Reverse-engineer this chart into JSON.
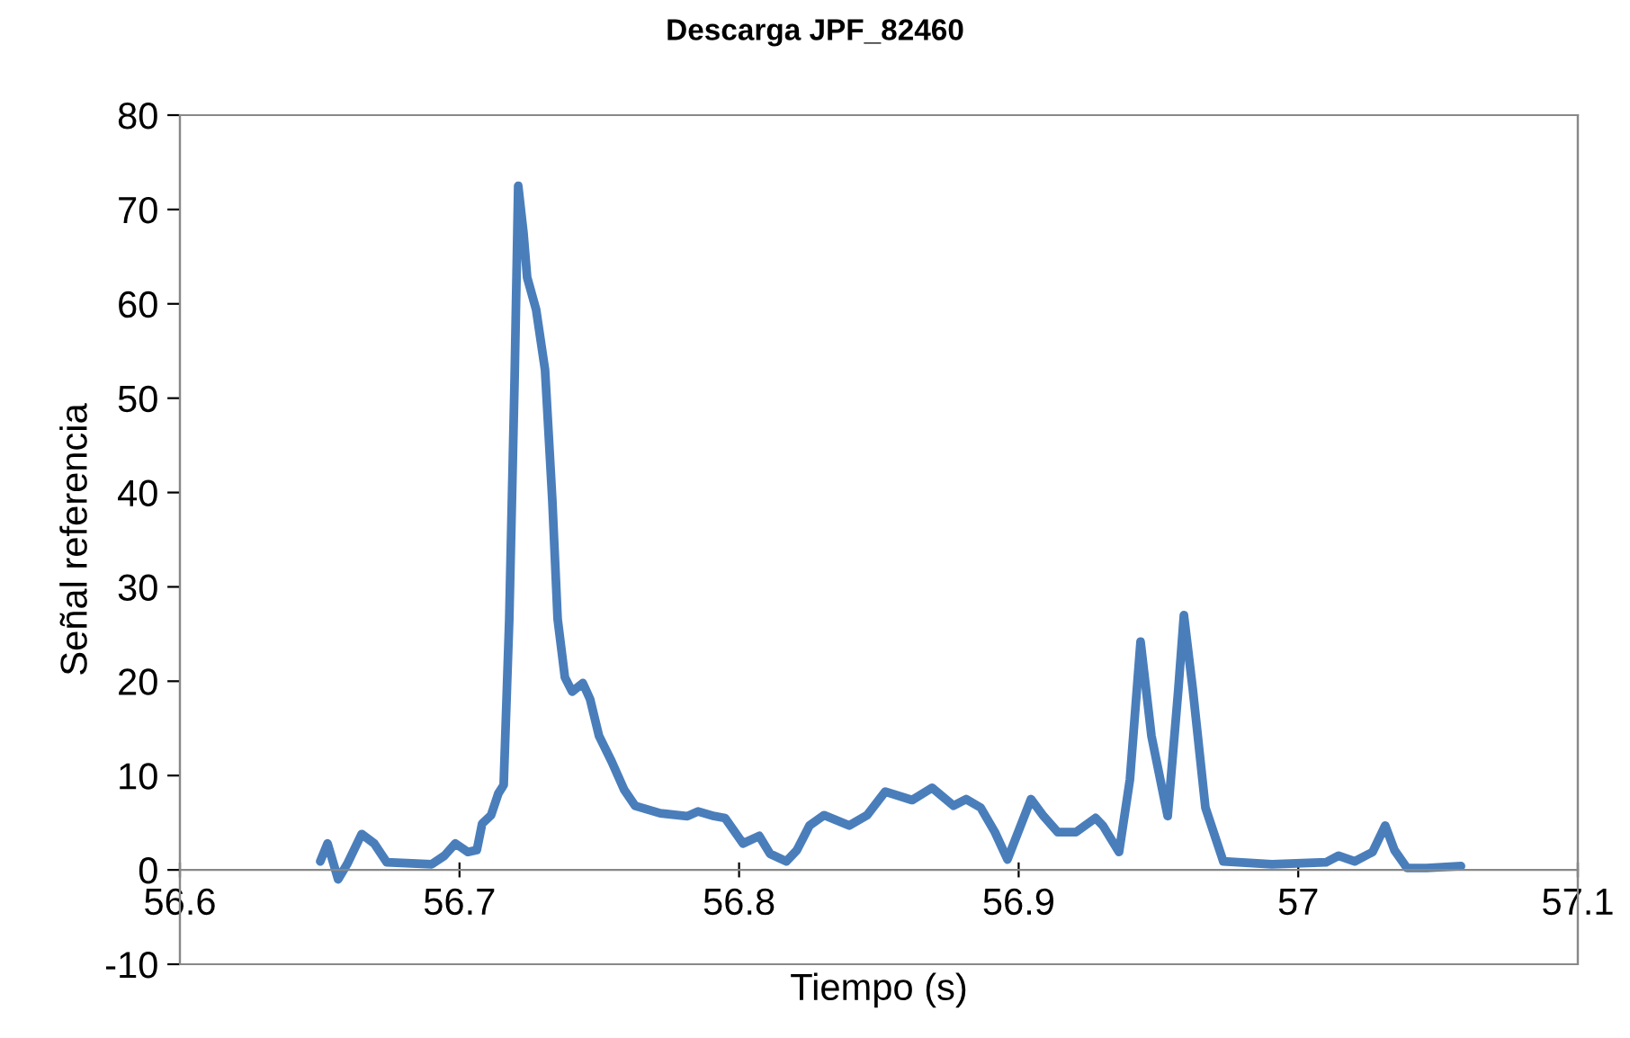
{
  "chart_data": {
    "type": "line",
    "title": "Descarga JPF_82460",
    "xlabel": "Tiempo (s)",
    "ylabel": "Señal referencia",
    "xlim": [
      56.6,
      57.1
    ],
    "xticks": [
      56.6,
      56.7,
      56.8,
      56.9,
      57,
      57.1
    ],
    "ylim": [
      -10,
      80
    ],
    "yticks": [
      -10,
      0,
      10,
      20,
      30,
      40,
      50,
      60,
      70,
      80
    ],
    "grid": false,
    "legend": false,
    "marker": "none",
    "line_style": "solid",
    "series": [
      {
        "color": "#4a7ebb",
        "x": [
          56.6502,
          56.6528,
          56.6566,
          56.6598,
          56.665,
          56.6695,
          56.674,
          56.6901,
          56.6946,
          56.6985,
          56.703,
          56.7062,
          56.7081,
          56.7113,
          56.7139,
          56.7158,
          56.7178,
          56.7197,
          56.721,
          56.7229,
          56.7242,
          56.7274,
          56.7306,
          56.7332,
          56.7351,
          56.7377,
          56.7403,
          56.7441,
          56.7467,
          56.7499,
          56.7544,
          56.7589,
          56.7628,
          56.7718,
          56.7815,
          56.7853,
          56.7911,
          56.795,
          56.8014,
          56.8072,
          56.8111,
          56.8169,
          56.8207,
          56.8252,
          56.8304,
          56.8394,
          56.8458,
          56.8523,
          56.8619,
          56.869,
          56.8767,
          56.8812,
          56.8864,
          56.8915,
          56.896,
          56.9044,
          56.9089,
          56.914,
          56.9205,
          56.9275,
          56.9301,
          56.9359,
          56.9398,
          56.9436,
          56.9475,
          56.9533,
          56.9571,
          56.9591,
          56.9623,
          56.9668,
          56.9732,
          56.9906,
          57.0099,
          57.0144,
          57.0202,
          57.0266,
          57.0311,
          57.0344,
          57.0389,
          57.0459,
          57.0582
        ],
        "values": [
          0.9,
          2.8,
          -1.0,
          0.6,
          3.8,
          2.8,
          0.8,
          0.6,
          1.5,
          2.8,
          1.9,
          2.1,
          4.9,
          5.8,
          8.1,
          9.0,
          26.6,
          51.9,
          72.5,
          67.5,
          62.8,
          59.4,
          53.0,
          39.2,
          26.6,
          20.4,
          18.9,
          19.8,
          18.1,
          14.2,
          11.5,
          8.5,
          6.8,
          6.0,
          5.7,
          6.2,
          5.7,
          5.5,
          2.8,
          3.6,
          1.7,
          0.9,
          2.1,
          4.7,
          5.8,
          4.7,
          5.8,
          8.3,
          7.4,
          8.7,
          6.8,
          7.5,
          6.6,
          4.0,
          1.1,
          7.5,
          5.7,
          4.0,
          4.0,
          5.5,
          4.7,
          1.9,
          9.6,
          24.2,
          14.2,
          5.7,
          19.1,
          27.0,
          19.1,
          6.6,
          0.9,
          0.6,
          0.8,
          1.5,
          0.9,
          1.9,
          4.7,
          2.1,
          0.2,
          0.2,
          0.4
        ]
      }
    ]
  }
}
